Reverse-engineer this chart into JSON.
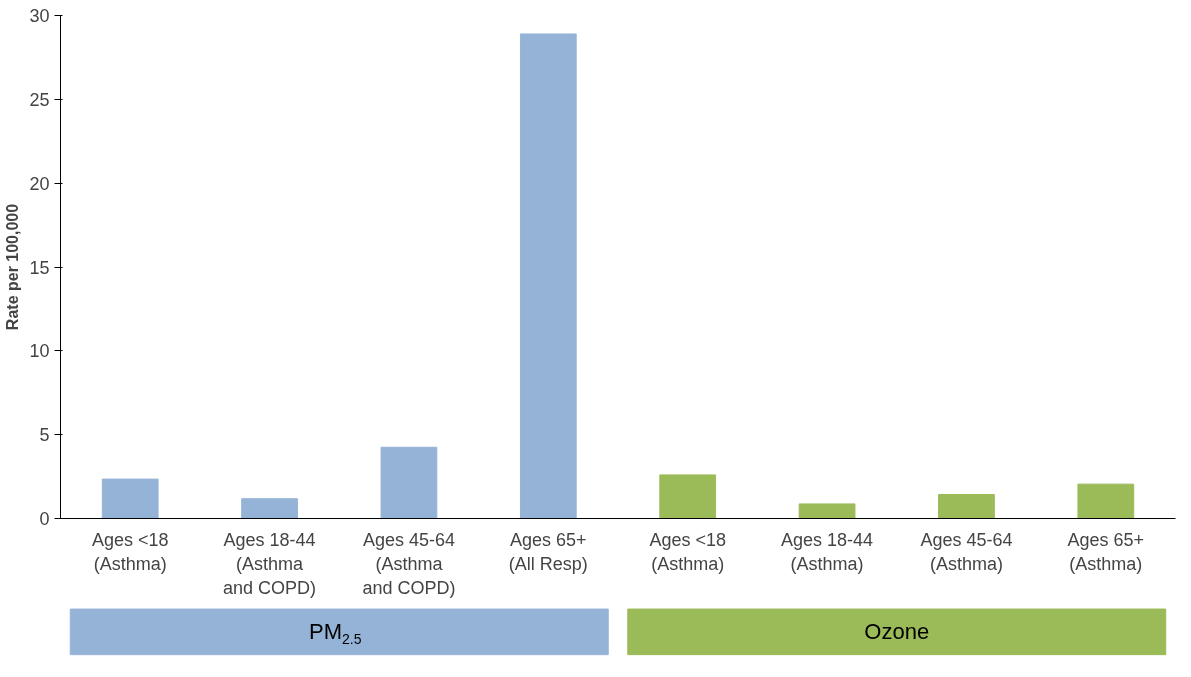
{
  "chart_data": {
    "type": "bar",
    "ylabel": "Rate per 100,000",
    "categories": [
      "Ages <18\n(Asthma)",
      "Ages 18-44\n(Asthma\nand COPD)",
      "Ages 45-64\n(Asthma\nand COPD)",
      "Ages 65+\n(All Resp)",
      "Ages <18\n(Asthma)",
      "Ages 18-44\n(Asthma)",
      "Ages 45-64\n(Asthma)",
      "Ages 65+\n(Asthma)"
    ],
    "series": [
      {
        "name": "PM$_{2.5}$",
        "color": "#95b3d7",
        "values": [
          2.35,
          1.18,
          4.25,
          28.9,
          null,
          null,
          null,
          null
        ]
      },
      {
        "name": "Ozone",
        "color": "#9bbb59",
        "values": [
          null,
          null,
          null,
          null,
          2.6,
          0.87,
          1.43,
          2.05
        ]
      }
    ],
    "ylim": [
      0,
      30
    ],
    "yticks": [
      0,
      5,
      10,
      15,
      20,
      25,
      30
    ],
    "grid": false,
    "legend": "bottom"
  }
}
